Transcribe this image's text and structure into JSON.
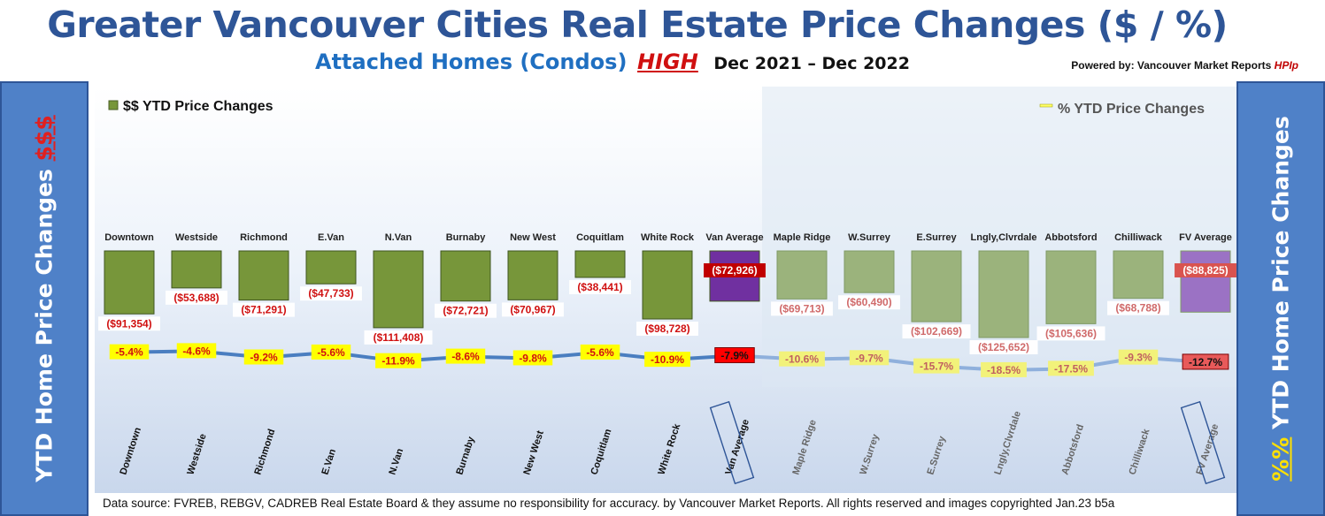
{
  "header": {
    "title": "Greater Vancouver Cities Real Estate Price Changes ($ / %)",
    "subtitle": "Attached Homes (Condos)",
    "highlight": "HIGH",
    "period": "Dec 2021 – Dec 2022",
    "powered_prefix": "Powered by: Vancouver Market Reports",
    "powered_brand": "HPIp"
  },
  "side_left": {
    "label": "YTD Home Price Changes",
    "accent": "$$$"
  },
  "side_right": {
    "accent": "%%",
    "label": "YTD Home Price  Changes"
  },
  "footer": {
    "text": "Data source: FVREB, REBGV, CADREB Real Estate Board & they assume no responsibility for accuracy. by Vancouver Market Reports. All rights reserved and  images copyrighted Jan.23 b5a"
  },
  "colors": {
    "van_bar": "#77963a",
    "van_avg_bar": "#7030a0",
    "fv_bar": "#9bb37c",
    "fv_avg_bar": "#9b72c4",
    "line": "#4a7ec0",
    "dollar_label": "#d01010",
    "pct_label_bg": "#ffff00",
    "pct_avg_label_bg": "#ff0000"
  },
  "chart_data": {
    "type": "bar",
    "legend_bar": "$$ YTD Price Changes",
    "legend_line": "% YTD Price Changes",
    "categories": [
      "Downtown",
      "Westside",
      "Richmond",
      "E.Van",
      "N.Van",
      "Burnaby",
      "New West",
      "Coquitlam",
      "White Rock",
      "Van Average",
      "Maple Ridge",
      "W.Surrey",
      "E.Surrey",
      "Lngly,Clvrdale",
      "Abbotsford",
      "Chilliwack",
      "FV Average"
    ],
    "series": [
      {
        "name": "$$ YTD Price Changes",
        "type": "bar",
        "values": [
          -91354,
          -53688,
          -71291,
          -47733,
          -111408,
          -72721,
          -70967,
          -38441,
          -98728,
          -72926,
          -69713,
          -60490,
          -102669,
          -125652,
          -105636,
          -68788,
          -88825
        ],
        "labels": [
          "($91,354)",
          "($53,688)",
          "($71,291)",
          "($47,733)",
          "($111,408)",
          "($72,721)",
          "($70,967)",
          "($38,441)",
          "($98,728)",
          "($72,926)",
          "($69,713)",
          "($60,490)",
          "($102,669)",
          "($125,652)",
          "($105,636)",
          "($68,788)",
          "($88,825)"
        ]
      },
      {
        "name": "% YTD Price Changes",
        "type": "line",
        "values": [
          -5.4,
          -4.6,
          -9.2,
          -5.6,
          -11.9,
          -8.6,
          -9.8,
          -5.6,
          -10.9,
          -7.9,
          -10.6,
          -9.7,
          -15.7,
          -18.5,
          -17.5,
          -9.3,
          -12.7
        ],
        "labels": [
          "-5.4%",
          "-4.6%",
          "-9.2%",
          "-5.6%",
          "-11.9%",
          "-8.6%",
          "-9.8%",
          "-5.6%",
          "-10.9%",
          "-7.9%",
          "-10.6%",
          "-9.7%",
          "-15.7%",
          "-18.5%",
          "-17.5%",
          "-9.3%",
          "-12.7%"
        ]
      }
    ],
    "groups": {
      "van_count": 10,
      "average_indices": [
        9,
        16
      ]
    },
    "grid": false,
    "legend_placement": "top"
  }
}
